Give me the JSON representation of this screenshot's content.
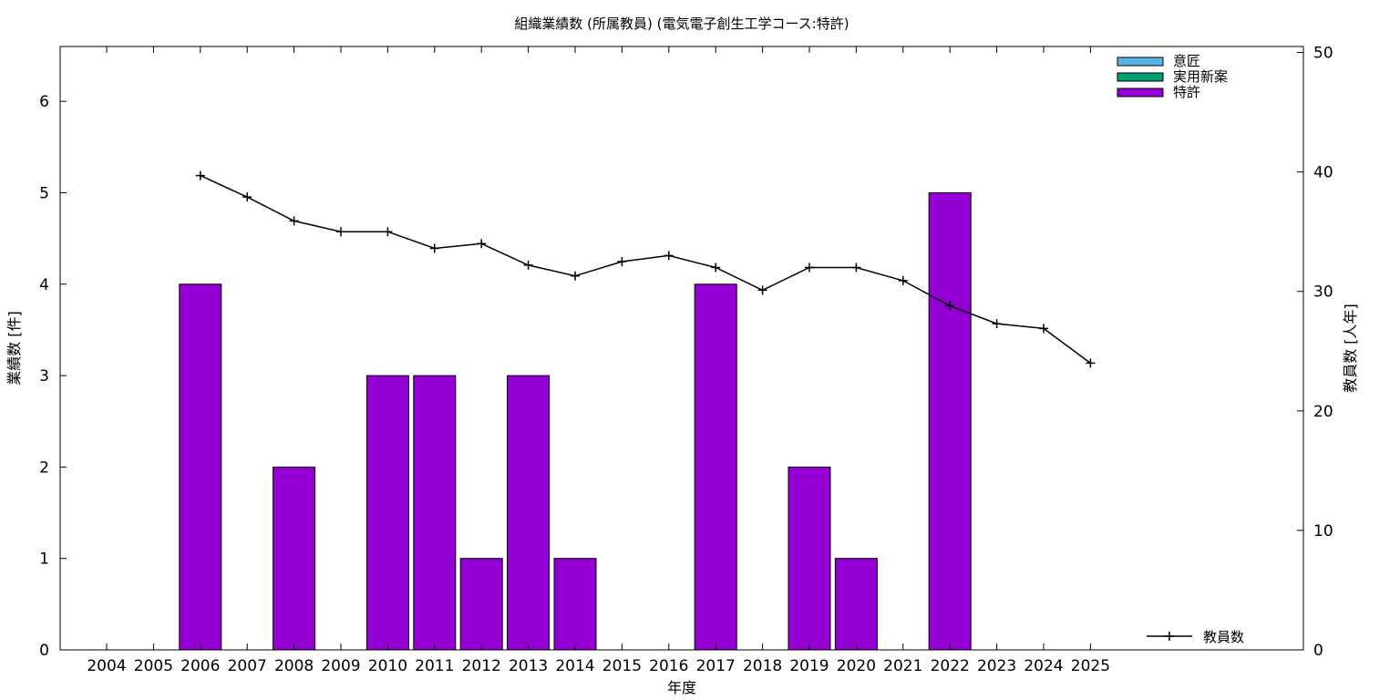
{
  "chart_data": {
    "type": "bar",
    "title": "組織業績数 (所属教員) (電気電子創生工学コース:特許)",
    "xlabel": "年度",
    "ylabel": "業績数 [件]",
    "y2label": "教員数 [人年]",
    "categories": [
      "2004",
      "2005",
      "2006",
      "2007",
      "2008",
      "2009",
      "2010",
      "2011",
      "2012",
      "2013",
      "2014",
      "2015",
      "2016",
      "2017",
      "2018",
      "2019",
      "2020",
      "2021",
      "2022",
      "2023",
      "2024",
      "2025"
    ],
    "ylim": [
      0,
      6.6
    ],
    "yticks": [
      0,
      1,
      2,
      3,
      4,
      5,
      6
    ],
    "y2lim": [
      0,
      50.5
    ],
    "y2ticks": [
      0,
      10,
      20,
      30,
      40,
      50
    ],
    "legend_position": "top-right",
    "series": [
      {
        "name": "意匠",
        "type": "bar",
        "color": "#56b4e9",
        "values": [
          0,
          0,
          0,
          0,
          0,
          0,
          0,
          0,
          0,
          0,
          0,
          0,
          0,
          0,
          0,
          0,
          0,
          0,
          0,
          0,
          0,
          0
        ]
      },
      {
        "name": "実用新案",
        "type": "bar",
        "color": "#009e73",
        "values": [
          0,
          0,
          0,
          0,
          0,
          0,
          0,
          0,
          0,
          0,
          0,
          0,
          0,
          0,
          0,
          0,
          0,
          0,
          0,
          0,
          0,
          0
        ]
      },
      {
        "name": "特許",
        "type": "bar",
        "color": "#9400d3",
        "values": [
          0,
          0,
          4,
          0,
          2,
          0,
          3,
          3,
          1,
          3,
          1,
          0,
          0,
          4,
          0,
          2,
          1,
          0,
          5,
          0,
          0,
          0
        ]
      },
      {
        "name": "教員数",
        "type": "line",
        "axis": "y2",
        "color": "#000000",
        "x": [
          "2006",
          "2007",
          "2008",
          "2009",
          "2010",
          "2011",
          "2012",
          "2013",
          "2014",
          "2015",
          "2016",
          "2017",
          "2018",
          "2019",
          "2020",
          "2021",
          "2022",
          "2023",
          "2024",
          "2025"
        ],
        "values": [
          39.7,
          37.9,
          35.9,
          35.0,
          35.0,
          33.6,
          34.0,
          32.2,
          31.3,
          32.5,
          33.0,
          32.0,
          30.1,
          32.0,
          32.0,
          30.9,
          28.8,
          27.3,
          26.9,
          24.0
        ]
      }
    ]
  }
}
